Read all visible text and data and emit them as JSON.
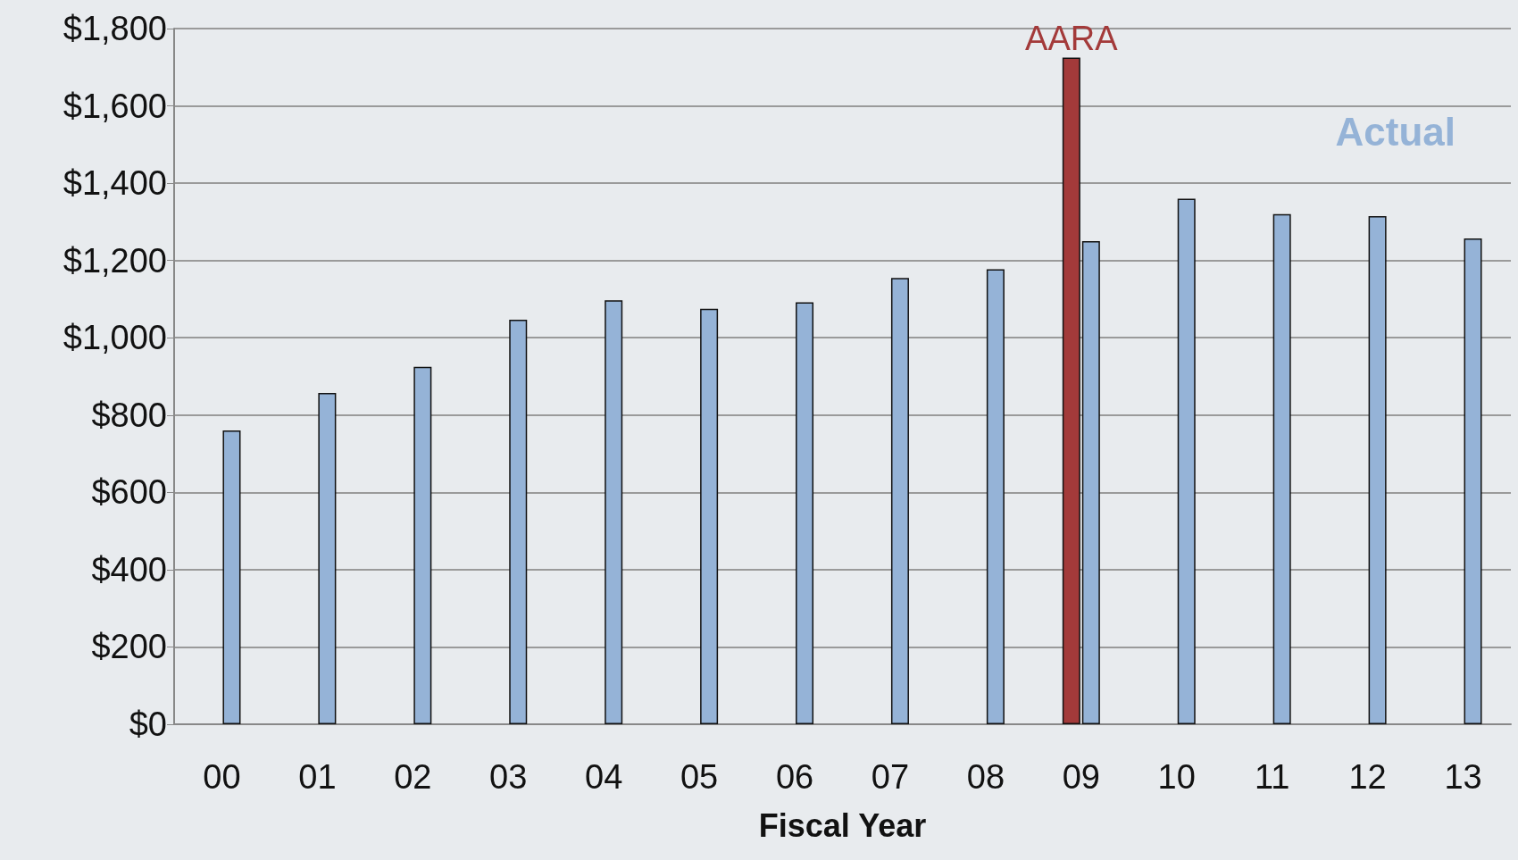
{
  "chart_data": {
    "type": "bar",
    "xlabel": "Fiscal Year",
    "categories": [
      "00",
      "01",
      "02",
      "03",
      "04",
      "05",
      "06",
      "07",
      "08",
      "09",
      "10",
      "11",
      "12",
      "13"
    ],
    "series": [
      {
        "name": "AARA",
        "color": "#a33a3a",
        "values": [
          null,
          null,
          null,
          null,
          null,
          null,
          null,
          null,
          null,
          1725,
          null,
          null,
          null,
          null
        ]
      },
      {
        "name": "Actual",
        "color": "#95b3d7",
        "values": [
          760,
          857,
          925,
          1047,
          1097,
          1075,
          1092,
          1155,
          1177,
          1250,
          1360,
          1320,
          1315,
          1257
        ]
      }
    ],
    "ylim": [
      0,
      1800
    ],
    "yticks": [
      {
        "value": 0,
        "label": "$0"
      },
      {
        "value": 200,
        "label": "$200"
      },
      {
        "value": 400,
        "label": "$400"
      },
      {
        "value": 600,
        "label": "$600"
      },
      {
        "value": 800,
        "label": "$800"
      },
      {
        "value": 1000,
        "label": "$1,000"
      },
      {
        "value": 1200,
        "label": "$1,200"
      },
      {
        "value": 1400,
        "label": "$1,400"
      },
      {
        "value": 1600,
        "label": "$1,600"
      },
      {
        "value": 1800,
        "label": "$1,800"
      }
    ],
    "grid": "y",
    "legend": false
  }
}
